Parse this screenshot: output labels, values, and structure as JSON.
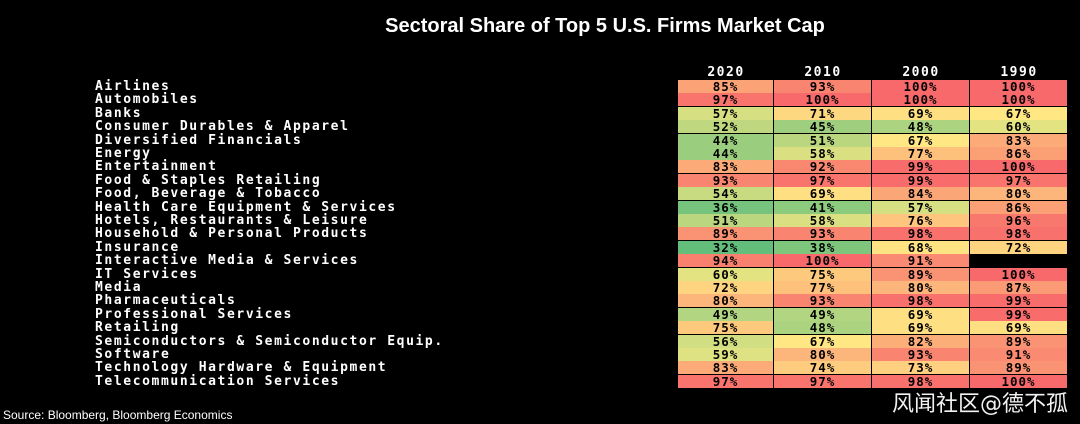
{
  "chart_data": {
    "type": "table",
    "title": "Sectoral Share of Top 5 U.S. Firms Market Cap",
    "columns": [
      "2020",
      "2010",
      "2000",
      "1990"
    ],
    "rows": [
      {
        "label": "Airlines",
        "values": [
          "85%",
          "93%",
          "100%",
          "100%"
        ],
        "nums": [
          85,
          93,
          100,
          100
        ]
      },
      {
        "label": "Automobiles",
        "values": [
          "97%",
          "100%",
          "100%",
          "100%"
        ],
        "nums": [
          97,
          100,
          100,
          100
        ]
      },
      {
        "label": "Banks",
        "values": [
          "57%",
          "71%",
          "69%",
          "67%"
        ],
        "nums": [
          57,
          71,
          69,
          67
        ]
      },
      {
        "label": "Consumer Durables & Apparel",
        "values": [
          "52%",
          "45%",
          "48%",
          "60%"
        ],
        "nums": [
          52,
          45,
          48,
          60
        ]
      },
      {
        "label": "Diversified Financials",
        "values": [
          "44%",
          "51%",
          "67%",
          "83%"
        ],
        "nums": [
          44,
          51,
          67,
          83
        ]
      },
      {
        "label": "Energy",
        "values": [
          "44%",
          "58%",
          "77%",
          "86%"
        ],
        "nums": [
          44,
          58,
          77,
          86
        ]
      },
      {
        "label": "Entertainment",
        "values": [
          "83%",
          "92%",
          "99%",
          "100%"
        ],
        "nums": [
          83,
          92,
          99,
          100
        ]
      },
      {
        "label": "Food & Staples Retailing",
        "values": [
          "93%",
          "97%",
          "99%",
          "97%"
        ],
        "nums": [
          93,
          97,
          99,
          97
        ]
      },
      {
        "label": "Food, Beverage & Tobacco",
        "values": [
          "54%",
          "69%",
          "84%",
          "80%"
        ],
        "nums": [
          54,
          69,
          84,
          80
        ]
      },
      {
        "label": "Health Care Equipment & Services",
        "values": [
          "36%",
          "41%",
          "57%",
          "86%"
        ],
        "nums": [
          36,
          41,
          57,
          86
        ]
      },
      {
        "label": "Hotels, Restaurants & Leisure",
        "values": [
          "51%",
          "58%",
          "76%",
          "96%"
        ],
        "nums": [
          51,
          58,
          76,
          96
        ]
      },
      {
        "label": "Household & Personal Products",
        "values": [
          "89%",
          "93%",
          "98%",
          "98%"
        ],
        "nums": [
          89,
          93,
          98,
          98
        ]
      },
      {
        "label": "Insurance",
        "values": [
          "32%",
          "38%",
          "68%",
          "72%"
        ],
        "nums": [
          32,
          38,
          68,
          72
        ]
      },
      {
        "label": "Interactive Media & Services",
        "values": [
          "94%",
          "100%",
          "91%",
          ""
        ],
        "nums": [
          94,
          100,
          91,
          null
        ]
      },
      {
        "label": "IT Services",
        "values": [
          "60%",
          "75%",
          "89%",
          "100%"
        ],
        "nums": [
          60,
          75,
          89,
          100
        ]
      },
      {
        "label": "Media",
        "values": [
          "72%",
          "77%",
          "80%",
          "87%"
        ],
        "nums": [
          72,
          77,
          80,
          87
        ]
      },
      {
        "label": "Pharmaceuticals",
        "values": [
          "80%",
          "93%",
          "98%",
          "99%"
        ],
        "nums": [
          80,
          93,
          98,
          99
        ]
      },
      {
        "label": "Professional Services",
        "values": [
          "49%",
          "49%",
          "69%",
          "99%"
        ],
        "nums": [
          49,
          49,
          69,
          99
        ]
      },
      {
        "label": "Retailing",
        "values": [
          "75%",
          "48%",
          "69%",
          "69%"
        ],
        "nums": [
          75,
          48,
          69,
          69
        ]
      },
      {
        "label": "Semiconductors & Semiconductor Equip.",
        "values": [
          "56%",
          "67%",
          "82%",
          "89%"
        ],
        "nums": [
          56,
          67,
          82,
          89
        ]
      },
      {
        "label": "Software",
        "values": [
          "59%",
          "80%",
          "93%",
          "91%"
        ],
        "nums": [
          59,
          80,
          93,
          91
        ]
      },
      {
        "label": "Technology Hardware & Equipment",
        "values": [
          "83%",
          "74%",
          "73%",
          "89%"
        ],
        "nums": [
          83,
          74,
          73,
          89
        ]
      },
      {
        "label": "Telecommunication Services",
        "values": [
          "97%",
          "97%",
          "98%",
          "100%"
        ],
        "nums": [
          97,
          97,
          98,
          100
        ]
      }
    ],
    "color_scale": {
      "low": "#63be7b",
      "mid": "#ffeb84",
      "high": "#f8696b"
    }
  },
  "source": "Source: Bloomberg, Bloomberg Economics",
  "watermark": "风闻社区@德不孤"
}
